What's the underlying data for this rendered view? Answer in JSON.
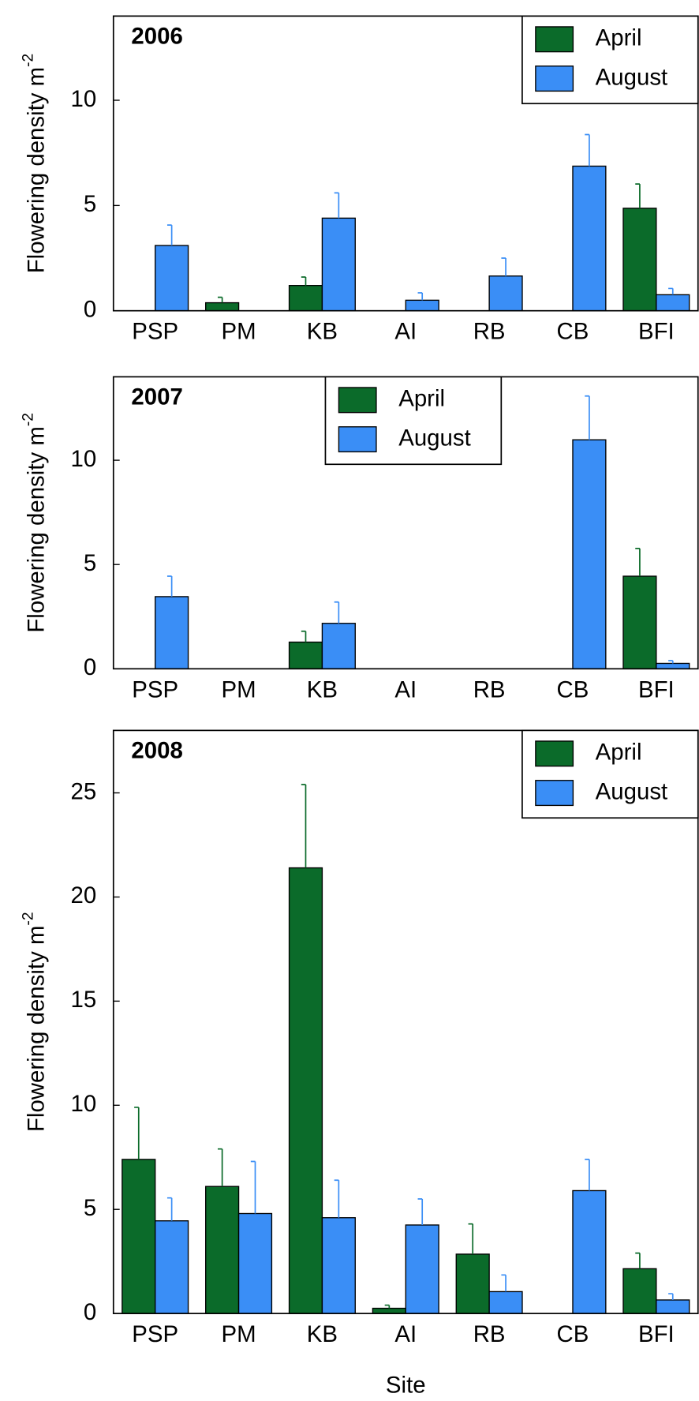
{
  "chart_data": [
    {
      "type": "bar",
      "title": "2006",
      "categories": [
        "PSP",
        "PM",
        "KB",
        "AI",
        "RB",
        "CB",
        "BFI"
      ],
      "series": [
        {
          "name": "April",
          "color": "#0b6b2a",
          "values": [
            0,
            0.38,
            1.2,
            0,
            0,
            0,
            4.87
          ],
          "errors": [
            null,
            0.26,
            0.4,
            null,
            null,
            null,
            1.15
          ]
        },
        {
          "name": "August",
          "color": "#3a8ef6",
          "values": [
            3.1,
            0,
            4.4,
            0.5,
            1.65,
            6.87,
            0.76
          ],
          "errors": [
            0.97,
            null,
            1.2,
            0.35,
            0.85,
            1.5,
            0.3
          ]
        }
      ],
      "ylim": [
        0,
        14
      ],
      "yticks": [
        0,
        5,
        10
      ],
      "y_label": "Flowering density m",
      "y_label_superscript": "-2",
      "legend_position": "upper right"
    },
    {
      "type": "bar",
      "title": "2007",
      "categories": [
        "PSP",
        "PM",
        "KB",
        "AI",
        "RB",
        "CB",
        "BFI"
      ],
      "series": [
        {
          "name": "April",
          "color": "#0b6b2a",
          "values": [
            0,
            0,
            1.28,
            0,
            0,
            0,
            4.44
          ],
          "errors": [
            null,
            null,
            0.52,
            null,
            null,
            null,
            1.33
          ]
        },
        {
          "name": "August",
          "color": "#3a8ef6",
          "values": [
            3.46,
            0,
            2.18,
            0,
            0,
            10.98,
            0.26
          ],
          "errors": [
            0.98,
            null,
            1.02,
            null,
            null,
            2.1,
            0.13
          ]
        }
      ],
      "ylim": [
        0,
        14
      ],
      "yticks": [
        0,
        5,
        10
      ],
      "y_label": "Flowering density m",
      "y_label_superscript": "-2",
      "legend_position": "upper center"
    },
    {
      "type": "bar",
      "title": "2008",
      "categories": [
        "PSP",
        "PM",
        "KB",
        "AI",
        "RB",
        "CB",
        "BFI"
      ],
      "series": [
        {
          "name": "April",
          "color": "#0b6b2a",
          "values": [
            7.4,
            6.1,
            21.4,
            0.25,
            2.85,
            0,
            2.15
          ],
          "errors": [
            2.5,
            1.8,
            4.0,
            0.15,
            1.45,
            null,
            0.75
          ]
        },
        {
          "name": "August",
          "color": "#3a8ef6",
          "values": [
            4.45,
            4.8,
            4.6,
            4.25,
            1.05,
            5.9,
            0.65
          ],
          "errors": [
            1.1,
            2.5,
            1.8,
            1.25,
            0.8,
            1.5,
            0.3
          ]
        }
      ],
      "ylim": [
        0,
        28
      ],
      "yticks": [
        0,
        5,
        10,
        15,
        20,
        25
      ],
      "y_label": "Flowering density m",
      "y_label_superscript": "-2",
      "x_label": "Site",
      "legend_position": "upper right"
    }
  ]
}
